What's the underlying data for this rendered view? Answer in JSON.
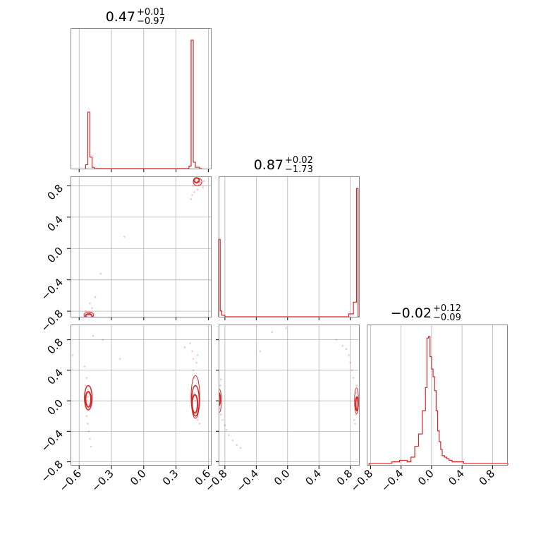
{
  "chart_data": {
    "type": "corner",
    "color": "#d62728",
    "grid": true,
    "parameters": [
      {
        "median": "0.47",
        "plus": "+0.01",
        "minus": "−0.97",
        "range": [
          -0.68,
          0.63
        ],
        "ticks": [
          -0.6,
          -0.3,
          0.0,
          0.3,
          0.6
        ],
        "tick_labels": [
          "−0.6",
          "−0.3",
          "0.0",
          "0.3",
          "0.6"
        ]
      },
      {
        "median": "0.87",
        "plus": "+0.02",
        "minus": "−1.73",
        "range": [
          -0.88,
          0.92
        ],
        "ticks": [
          -0.8,
          -0.4,
          0.0,
          0.4,
          0.8
        ],
        "tick_labels": [
          "−0.8",
          "−0.4",
          "0.0",
          "0.4",
          "0.8"
        ]
      },
      {
        "median": "−0.02",
        "plus": "+0.12",
        "minus": "−0.09",
        "range": [
          -0.85,
          1.0
        ],
        "ticks": [
          -0.8,
          -0.4,
          0.0,
          0.4,
          0.8
        ],
        "tick_labels": [
          "−0.8",
          "−0.4",
          "0.0",
          "0.4",
          "0.8"
        ]
      }
    ],
    "histograms": [
      {
        "param": 0,
        "edges": [
          -0.54,
          -0.52,
          -0.5,
          -0.48,
          -0.46,
          0.42,
          0.44,
          0.46,
          0.48,
          0.5,
          0.52,
          0.54
        ],
        "counts": [
          0.03,
          0.44,
          0.09,
          0.01,
          0,
          0.02,
          1.0,
          0.05,
          0.01,
          0.01,
          0.0
        ]
      },
      {
        "param": 1,
        "edges": [
          -0.88,
          -0.86,
          -0.84,
          -0.8,
          0.78,
          0.84,
          0.88,
          0.9,
          0.92
        ],
        "counts": [
          0.53,
          0.04,
          0.01,
          0.0,
          0.02,
          0.1,
          0.88,
          0.0
        ]
      },
      {
        "param": 2,
        "edges": [
          -0.82,
          -0.72,
          -0.62,
          -0.52,
          -0.42,
          -0.32,
          -0.27,
          -0.22,
          -0.17,
          -0.12,
          -0.08,
          -0.06,
          -0.04,
          -0.02,
          0.0,
          0.02,
          0.04,
          0.06,
          0.08,
          0.1,
          0.12,
          0.14,
          0.17,
          0.2,
          0.23,
          0.27,
          0.32,
          0.42,
          0.52,
          0.62,
          0.72,
          0.82,
          0.92,
          1.0
        ],
        "counts": [
          0.01,
          0.01,
          0.01,
          0.02,
          0.03,
          0.02,
          0.05,
          0.12,
          0.2,
          0.35,
          0.5,
          0.82,
          0.83,
          0.7,
          0.62,
          0.57,
          0.48,
          0.35,
          0.22,
          0.15,
          0.1,
          0.06,
          0.05,
          0.04,
          0.03,
          0.02,
          0.02,
          0.01,
          0.01,
          0.01,
          0.01,
          0.01,
          0.01
        ]
      }
    ],
    "scatter": [
      {
        "x_param": 0,
        "y_param": 1,
        "points": [
          [
            0.47,
            0.88
          ],
          [
            0.48,
            0.87
          ],
          [
            0.5,
            0.86
          ],
          [
            0.52,
            0.85
          ],
          [
            0.53,
            0.84
          ],
          [
            0.49,
            0.83
          ],
          [
            0.51,
            0.82
          ],
          [
            0.46,
            0.8
          ],
          [
            0.55,
            0.78
          ],
          [
            0.5,
            0.75
          ],
          [
            0.47,
            0.72
          ],
          [
            0.45,
            0.68
          ],
          [
            0.44,
            0.63
          ],
          [
            -0.52,
            -0.86
          ],
          [
            -0.5,
            -0.85
          ],
          [
            -0.53,
            -0.84
          ],
          [
            -0.51,
            -0.83
          ],
          [
            -0.49,
            -0.82
          ],
          [
            -0.54,
            -0.8
          ],
          [
            -0.48,
            -0.76
          ],
          [
            -0.5,
            -0.7
          ],
          [
            -0.45,
            -0.62
          ],
          [
            -0.4,
            -0.32
          ],
          [
            -0.18,
            0.15
          ],
          [
            -0.35,
            -0.88
          ],
          [
            0.56,
            0.86
          ]
        ],
        "contours": [
          {
            "cx": 0.49,
            "cy": 0.87,
            "rx": 0.025,
            "ry": 0.03,
            "w": 2
          },
          {
            "cx": 0.5,
            "cy": 0.85,
            "rx": 0.04,
            "ry": 0.05,
            "w": 1
          },
          {
            "cx": -0.51,
            "cy": -0.86,
            "rx": 0.03,
            "ry": 0.025,
            "w": 2
          },
          {
            "cx": -0.51,
            "cy": -0.85,
            "rx": 0.045,
            "ry": 0.04,
            "w": 1
          }
        ]
      },
      {
        "x_param": 0,
        "y_param": 2,
        "points": [
          [
            -0.52,
            0.15
          ],
          [
            -0.51,
            0.1
          ],
          [
            -0.52,
            0.05
          ],
          [
            -0.53,
            0.0
          ],
          [
            -0.52,
            -0.05
          ],
          [
            -0.51,
            -0.1
          ],
          [
            -0.53,
            -0.2
          ],
          [
            -0.52,
            -0.3
          ],
          [
            -0.51,
            -0.4
          ],
          [
            -0.5,
            -0.5
          ],
          [
            -0.49,
            -0.6
          ],
          [
            -0.54,
            0.2
          ],
          [
            -0.53,
            0.3
          ],
          [
            -0.55,
            0.45
          ],
          [
            0.46,
            0.4
          ],
          [
            0.47,
            0.3
          ],
          [
            0.48,
            0.2
          ],
          [
            0.47,
            0.1
          ],
          [
            0.48,
            0.0
          ],
          [
            0.49,
            -0.1
          ],
          [
            0.48,
            -0.2
          ],
          [
            0.5,
            -0.25
          ],
          [
            0.52,
            -0.3
          ],
          [
            0.46,
            0.55
          ],
          [
            0.45,
            0.65
          ],
          [
            0.43,
            0.75
          ],
          [
            0.38,
            0.7
          ],
          [
            0.49,
            0.5
          ],
          [
            0.5,
            0.6
          ],
          [
            -0.22,
            0.55
          ],
          [
            -0.38,
            0.8
          ],
          [
            -0.47,
            0.85
          ],
          [
            -0.66,
            0.6
          ]
        ],
        "contours": [
          {
            "cx": -0.515,
            "cy": 0.02,
            "rx": 0.025,
            "ry": 0.1,
            "w": 2
          },
          {
            "cx": -0.515,
            "cy": 0.04,
            "rx": 0.035,
            "ry": 0.16,
            "w": 1.5
          },
          {
            "cx": 0.475,
            "cy": -0.04,
            "rx": 0.025,
            "ry": 0.12,
            "w": 2
          },
          {
            "cx": 0.48,
            "cy": 0.0,
            "rx": 0.035,
            "ry": 0.2,
            "w": 1.5
          },
          {
            "cx": 0.48,
            "cy": 0.05,
            "rx": 0.04,
            "ry": 0.28,
            "w": 1
          }
        ]
      },
      {
        "x_param": 1,
        "y_param": 2,
        "points": [
          [
            -0.87,
            0.1
          ],
          [
            -0.86,
            0.0
          ],
          [
            -0.87,
            -0.1
          ],
          [
            -0.85,
            -0.18
          ],
          [
            -0.83,
            -0.25
          ],
          [
            -0.8,
            -0.32
          ],
          [
            -0.78,
            -0.38
          ],
          [
            -0.75,
            -0.45
          ],
          [
            -0.7,
            -0.52
          ],
          [
            -0.65,
            -0.58
          ],
          [
            -0.6,
            -0.62
          ],
          [
            -0.86,
            0.2
          ],
          [
            -0.85,
            0.28
          ],
          [
            0.88,
            0.2
          ],
          [
            0.87,
            0.1
          ],
          [
            0.88,
            0.0
          ],
          [
            0.88,
            -0.1
          ],
          [
            0.87,
            -0.18
          ],
          [
            0.85,
            -0.25
          ],
          [
            0.84,
            0.3
          ],
          [
            0.82,
            0.4
          ],
          [
            0.8,
            0.5
          ],
          [
            0.78,
            0.6
          ],
          [
            0.75,
            0.68
          ],
          [
            0.7,
            0.72
          ],
          [
            0.62,
            0.8
          ],
          [
            -0.2,
            0.9
          ],
          [
            -0.02,
            0.95
          ],
          [
            -0.35,
            0.65
          ],
          [
            0.86,
            -0.3
          ]
        ],
        "contours": [
          {
            "cx": -0.875,
            "cy": 0.02,
            "rx": 0.015,
            "ry": 0.08,
            "w": 2
          },
          {
            "cx": -0.87,
            "cy": 0.0,
            "rx": 0.025,
            "ry": 0.15,
            "w": 1
          },
          {
            "cx": 0.885,
            "cy": -0.04,
            "rx": 0.015,
            "ry": 0.09,
            "w": 2
          },
          {
            "cx": 0.88,
            "cy": 0.0,
            "rx": 0.025,
            "ry": 0.17,
            "w": 1
          }
        ]
      }
    ]
  }
}
